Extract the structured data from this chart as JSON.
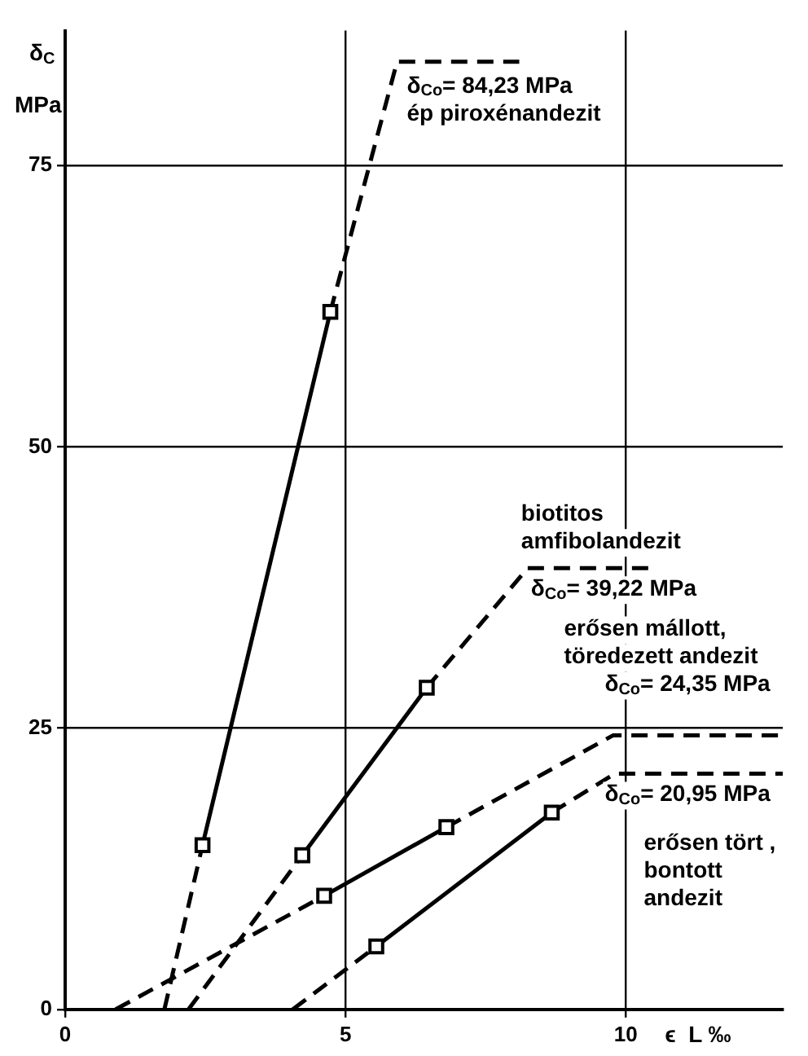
{
  "chart_data": {
    "type": "line",
    "ylabel": "δ$_{C}$\nMPa",
    "xlabel": "ϵ  L ‰",
    "xlim": [
      0,
      12.8
    ],
    "ylim": [
      0,
      87
    ],
    "xticks": [
      0,
      5,
      10
    ],
    "yticks": [
      0,
      25,
      50,
      75
    ],
    "grid": true,
    "legend": false,
    "series": [
      {
        "color": "#000000",
        "marker": "square",
        "line_style": "solid",
        "x": [
          2.45,
          4.73
        ],
        "values": [
          14.6,
          62.0
        ]
      },
      {
        "color": "#000000",
        "marker": "none",
        "line_style": "dashed",
        "x": [
          1.77,
          2.45,
          3.6,
          4.73,
          5.92,
          8.1
        ],
        "values": [
          0,
          14.6,
          null,
          62.0,
          84.23,
          84.23
        ]
      },
      {
        "color": "#000000",
        "marker": "square",
        "line_style": "solid",
        "x": [
          4.23,
          6.45
        ],
        "values": [
          13.7,
          28.6
        ]
      },
      {
        "color": "#000000",
        "marker": "none",
        "line_style": "dashed",
        "x": [
          2.2,
          4.23,
          5.3,
          6.45,
          8.25,
          10.4
        ],
        "values": [
          0,
          13.7,
          null,
          28.6,
          39.22,
          39.22
        ]
      },
      {
        "color": "#000000",
        "marker": "square",
        "line_style": "solid",
        "x": [
          4.62,
          6.8
        ],
        "values": [
          10.1,
          16.2
        ]
      },
      {
        "color": "#000000",
        "marker": "none",
        "line_style": "dashed",
        "x": [
          0.9,
          4.62,
          5.7,
          6.8,
          9.77,
          12.8
        ],
        "values": [
          0,
          10.1,
          null,
          16.2,
          24.35,
          24.35
        ]
      },
      {
        "color": "#000000",
        "marker": "square",
        "line_style": "solid",
        "x": [
          5.55,
          8.68
        ],
        "values": [
          5.6,
          17.5
        ]
      },
      {
        "color": "#000000",
        "marker": "none",
        "line_style": "dashed",
        "x": [
          4.06,
          5.55,
          7.1,
          8.68,
          9.8,
          12.8
        ],
        "values": [
          0,
          5.6,
          null,
          17.5,
          20.95,
          20.95
        ]
      }
    ],
    "annotations": [
      "δ$_{Co}$= 84,23 MPa\nép piroxénandezit",
      "biotitos\namfibolandezit",
      "δ$_{Co}$= 39,22 MPa",
      "erősen mállott,\ntöredezett andezit",
      "δ$_{Co}$= 24,35 MPa",
      "δ$_{Co}$= 20,95 MPa",
      "erősen tört ,\nbontott\nandezit"
    ]
  }
}
